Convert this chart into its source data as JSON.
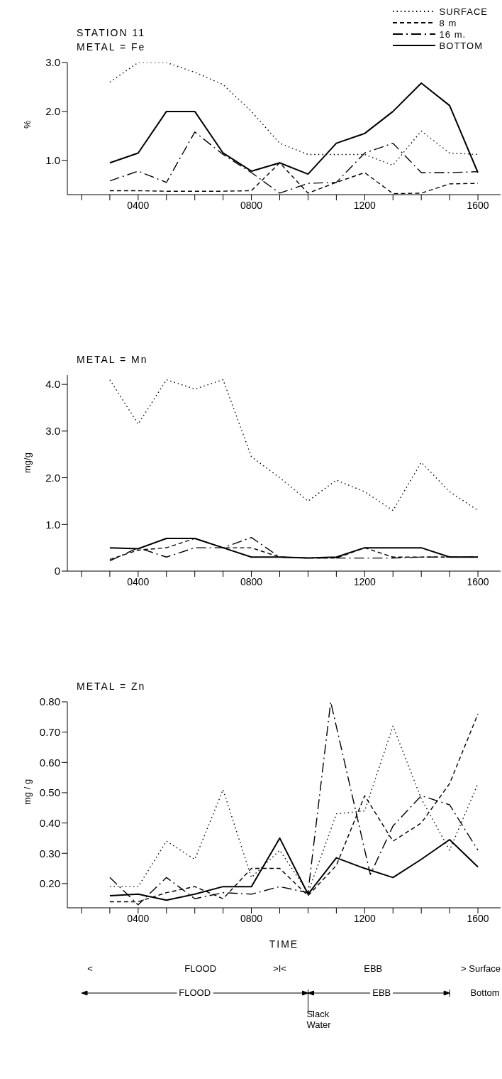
{
  "chart_data": [
    {
      "type": "line",
      "title": "STATION 11",
      "subtitle": "METAL = Fe",
      "ylabel": "%",
      "legend": "top right",
      "x": [
        300,
        400,
        500,
        600,
        700,
        800,
        900,
        1000,
        1100,
        1200,
        1300,
        1400,
        1500,
        1600
      ],
      "xlim": [
        150,
        1680
      ],
      "xticks": [
        {
          "value": 200,
          "label": null
        },
        {
          "value": 300,
          "label": null
        },
        {
          "value": 400,
          "label": "0400"
        },
        {
          "value": 500,
          "label": null
        },
        {
          "value": 600,
          "label": null
        },
        {
          "value": 700,
          "label": null
        },
        {
          "value": 800,
          "label": "0800"
        },
        {
          "value": 900,
          "label": null
        },
        {
          "value": 1000,
          "label": null
        },
        {
          "value": 1100,
          "label": null
        },
        {
          "value": 1200,
          "label": "1200"
        },
        {
          "value": 1300,
          "label": null
        },
        {
          "value": 1400,
          "label": null
        },
        {
          "value": 1500,
          "label": null
        },
        {
          "value": 1600,
          "label": "1600"
        }
      ],
      "ylim": [
        0.3,
        3.0
      ],
      "yticks": [
        {
          "value": 1,
          "label": "1.0"
        },
        {
          "value": 2,
          "label": "2.0"
        },
        {
          "value": 3,
          "label": "3.0"
        }
      ],
      "series": [
        {
          "name": "SURFACE",
          "color": "#000000",
          "line_style": "dotted",
          "values": [
            2.6,
            3.0,
            3.0,
            2.8,
            2.55,
            2.0,
            1.35,
            1.12,
            1.12,
            1.12,
            0.9,
            1.6,
            1.15,
            1.12
          ]
        },
        {
          "name": "8 m",
          "color": "#000000",
          "line_style": "dashed",
          "values": [
            0.38,
            0.38,
            0.37,
            0.37,
            0.37,
            0.38,
            0.95,
            0.33,
            0.55,
            0.75,
            0.32,
            0.33,
            0.52,
            0.53
          ]
        },
        {
          "name": "16 m.",
          "color": "#000000",
          "line_style": "dashdot",
          "values": [
            0.58,
            0.78,
            0.55,
            1.58,
            1.12,
            0.75,
            0.33,
            0.53,
            0.55,
            1.15,
            1.35,
            0.75,
            0.75,
            0.77
          ]
        },
        {
          "name": "BOTTOM",
          "color": "#000000",
          "line_style": "solid",
          "values": [
            0.95,
            1.15,
            2.0,
            2.0,
            1.15,
            0.78,
            0.95,
            0.72,
            1.35,
            1.55,
            2.0,
            2.58,
            2.12,
            0.75
          ]
        }
      ]
    },
    {
      "type": "line",
      "title": "METAL = Mn",
      "ylabel": "mg/g",
      "x": [
        300,
        400,
        500,
        600,
        700,
        800,
        900,
        1000,
        1100,
        1200,
        1300,
        1400,
        1500,
        1600
      ],
      "xlim": [
        150,
        1680
      ],
      "xticks": [
        {
          "value": 200,
          "label": null
        },
        {
          "value": 300,
          "label": null
        },
        {
          "value": 400,
          "label": "0400"
        },
        {
          "value": 500,
          "label": null
        },
        {
          "value": 600,
          "label": null
        },
        {
          "value": 700,
          "label": null
        },
        {
          "value": 800,
          "label": "0800"
        },
        {
          "value": 900,
          "label": null
        },
        {
          "value": 1000,
          "label": null
        },
        {
          "value": 1100,
          "label": null
        },
        {
          "value": 1200,
          "label": "1200"
        },
        {
          "value": 1300,
          "label": null
        },
        {
          "value": 1400,
          "label": null
        },
        {
          "value": 1500,
          "label": null
        },
        {
          "value": 1600,
          "label": "1600"
        }
      ],
      "ylim": [
        0,
        4.2
      ],
      "yticks": [
        0,
        {
          "value": 1,
          "label": "1.0"
        },
        {
          "value": 2,
          "label": "2.0"
        },
        {
          "value": 3,
          "label": "3.0"
        },
        {
          "value": 4,
          "label": "4.0"
        }
      ],
      "series": [
        {
          "color": "#000000",
          "line_style": "dotted",
          "values": [
            4.1,
            3.15,
            4.1,
            3.9,
            4.1,
            2.45,
            2.0,
            1.5,
            1.95,
            1.7,
            1.3,
            2.33,
            1.7,
            1.3
          ]
        },
        {
          "color": "#000000",
          "line_style": "dashed",
          "values": [
            0.25,
            0.45,
            0.5,
            0.7,
            0.5,
            0.5,
            0.3,
            0.28,
            0.28,
            0.5,
            0.3,
            0.3,
            0.3,
            0.3
          ]
        },
        {
          "color": "#000000",
          "line_style": "dashdot",
          "values": [
            0.22,
            0.5,
            0.3,
            0.5,
            0.5,
            0.72,
            0.3,
            0.28,
            0.28,
            0.28,
            0.28,
            0.3,
            0.3,
            0.3
          ]
        },
        {
          "color": "#000000",
          "line_style": "solid",
          "values": [
            0.5,
            0.48,
            0.7,
            0.7,
            0.5,
            0.3,
            0.3,
            0.28,
            0.3,
            0.5,
            0.5,
            0.5,
            0.3,
            0.3
          ]
        }
      ]
    },
    {
      "type": "line",
      "title": "METAL = Zn",
      "ylabel": "mg / g",
      "xlabel": "TIME",
      "x": [
        300,
        400,
        500,
        600,
        700,
        800,
        900,
        1000,
        1100,
        1200,
        1300,
        1400,
        1500,
        1600
      ],
      "xlim": [
        150,
        1680
      ],
      "xticks": [
        {
          "value": 200,
          "label": null
        },
        {
          "value": 300,
          "label": null
        },
        {
          "value": 400,
          "label": "0400"
        },
        {
          "value": 500,
          "label": null
        },
        {
          "value": 600,
          "label": null
        },
        {
          "value": 700,
          "label": null
        },
        {
          "value": 800,
          "label": "0800"
        },
        {
          "value": 900,
          "label": null
        },
        {
          "value": 1000,
          "label": null
        },
        {
          "value": 1100,
          "label": null
        },
        {
          "value": 1200,
          "label": "1200"
        },
        {
          "value": 1300,
          "label": null
        },
        {
          "value": 1400,
          "label": null
        },
        {
          "value": 1500,
          "label": null
        },
        {
          "value": 1600,
          "label": "1600"
        }
      ],
      "ylim": [
        0.12,
        0.8
      ],
      "yticks": [
        {
          "value": 0.2,
          "label": "0.20"
        },
        {
          "value": 0.3,
          "label": "0.30"
        },
        {
          "value": 0.4,
          "label": "0.40"
        },
        {
          "value": 0.5,
          "label": "0.50"
        },
        {
          "value": 0.6,
          "label": "0.60"
        },
        {
          "value": 0.7,
          "label": "0.70"
        },
        {
          "value": 0.8,
          "label": "0.80"
        }
      ],
      "series": [
        {
          "color": "#000000",
          "line_style": "dotted",
          "values": [
            0.19,
            0.19,
            0.34,
            0.28,
            0.51,
            0.22,
            0.31,
            0.17,
            0.43,
            0.44,
            0.72,
            0.48,
            0.31,
            0.53
          ]
        },
        {
          "color": "#000000",
          "line_style": "dashed",
          "values": [
            0.14,
            0.14,
            0.17,
            0.19,
            0.15,
            0.25,
            0.25,
            0.16,
            0.26,
            0.49,
            0.34,
            0.4,
            0.53,
            0.76
          ]
        },
        {
          "color": "#000000",
          "line_style": "dashdot",
          "x": [
            300,
            400,
            500,
            600,
            700,
            800,
            900,
            1000,
            1080,
            1220,
            1300,
            1400,
            1500,
            1600
          ],
          "values": [
            0.22,
            0.13,
            0.22,
            0.15,
            0.17,
            0.165,
            0.19,
            0.17,
            0.8,
            0.23,
            0.39,
            0.49,
            0.46,
            0.31
          ]
        },
        {
          "color": "#000000",
          "line_style": "solid",
          "values": [
            0.16,
            0.165,
            0.145,
            0.165,
            0.19,
            0.19,
            0.35,
            0.165,
            0.285,
            0.25,
            0.22,
            0.28,
            0.345,
            0.255
          ]
        }
      ],
      "annotations": [
        "<",
        "FLOOD",
        ">I<",
        "EBB",
        "> Surface",
        "FLOOD",
        "EBB",
        "Bottom",
        "Slack Water"
      ]
    }
  ]
}
